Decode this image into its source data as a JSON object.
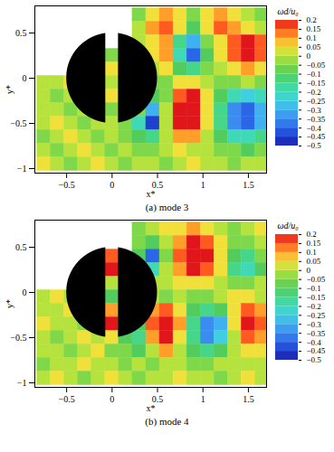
{
  "chart_data": [
    {
      "type": "heatmap",
      "caption": "(a) mode 3",
      "x_label": "x*",
      "y_label": "y*",
      "xlim": [
        -0.85,
        1.7
      ],
      "ylim": [
        -1.05,
        0.8
      ],
      "xticks": [
        -0.5,
        0,
        0.5,
        1,
        1.5
      ],
      "yticks": [
        -1,
        -0.5,
        0,
        0.5
      ],
      "cells": {
        "x": [
          -0.75,
          -0.6,
          -0.45,
          -0.3,
          -0.15,
          0,
          0.15,
          0.3,
          0.45,
          0.6,
          0.75,
          0.9,
          1.05,
          1.2,
          1.35,
          1.5,
          1.65
        ],
        "y": [
          0.7,
          0.55,
          0.4,
          0.25,
          0.1,
          -0.05,
          -0.2,
          -0.35,
          -0.5,
          -0.65,
          -0.8,
          -0.95
        ],
        "values": [
          [
            null,
            null,
            null,
            null,
            null,
            null,
            null,
            -0.05,
            0.05,
            0.1,
            0.05,
            -0.05,
            0.05,
            0.1,
            0.05,
            0,
            -0.05
          ],
          [
            null,
            null,
            null,
            null,
            null,
            null,
            null,
            0,
            0.1,
            0.15,
            0.05,
            -0.1,
            0.05,
            0.15,
            0.1,
            0.05,
            0
          ],
          [
            null,
            null,
            null,
            null,
            null,
            null,
            null,
            0,
            0.05,
            0.1,
            -0.15,
            -0.3,
            -0.05,
            0.05,
            0.15,
            0.2,
            0.15
          ],
          [
            null,
            null,
            null,
            null,
            null,
            -0.05,
            null,
            0,
            0.05,
            0.1,
            -0.2,
            -0.4,
            -0.1,
            0.05,
            0.15,
            0.2,
            0.15
          ],
          [
            null,
            null,
            null,
            null,
            null,
            0.05,
            null,
            0,
            0,
            0.05,
            -0.1,
            -0.15,
            -0.05,
            0,
            0.05,
            0.1,
            0.05
          ],
          [
            0,
            0,
            0.05,
            0,
            -0.05,
            0,
            0,
            0,
            -0.05,
            -0.05,
            0.05,
            0.05,
            0,
            -0.05,
            -0.05,
            0,
            -0.05
          ],
          [
            0,
            -0.05,
            0,
            0.05,
            0,
            0.05,
            0,
            0,
            -0.1,
            -0.05,
            0.15,
            0.2,
            0.05,
            -0.1,
            -0.2,
            -0.25,
            -0.2
          ],
          [
            0,
            0,
            -0.05,
            0,
            0.05,
            -0.05,
            0,
            -0.05,
            -0.3,
            0,
            0.2,
            0.2,
            0.05,
            -0.15,
            -0.35,
            -0.4,
            -0.3
          ],
          [
            0,
            0.05,
            0,
            -0.05,
            0,
            0,
            -0.05,
            -0.2,
            -0.45,
            0,
            0.2,
            0.2,
            0.05,
            -0.15,
            -0.35,
            -0.4,
            -0.3
          ],
          [
            -0.05,
            0,
            0.05,
            0,
            -0.05,
            0,
            -0.05,
            -0.1,
            -0.15,
            0,
            0.1,
            0.1,
            0,
            -0.1,
            -0.2,
            -0.2,
            -0.15
          ],
          [
            0,
            -0.05,
            0,
            0.05,
            0,
            -0.05,
            0,
            -0.05,
            -0.05,
            0,
            0.05,
            0,
            0,
            -0.05,
            -0.05,
            -0.1,
            -0.05
          ],
          [
            0.05,
            0,
            -0.05,
            0,
            0.05,
            0,
            -0.05,
            0,
            0,
            -0.05,
            0,
            0.05,
            0,
            0,
            -0.05,
            0,
            0
          ]
        ]
      },
      "colorbar": {
        "label": "ωd/u₀",
        "range": [
          -0.5,
          0.2
        ],
        "ticks": [
          -0.5,
          -0.45,
          -0.4,
          -0.35,
          -0.3,
          -0.25,
          -0.2,
          -0.15,
          -0.1,
          -0.05,
          0,
          0.05,
          0.1,
          0.15,
          0.2
        ]
      }
    },
    {
      "type": "heatmap",
      "caption": "(b) mode 4",
      "x_label": "x*",
      "y_label": "y*",
      "xlim": [
        -0.85,
        1.7
      ],
      "ylim": [
        -1.05,
        0.8
      ],
      "xticks": [
        -0.5,
        0,
        0.5,
        1,
        1.5
      ],
      "yticks": [
        -1,
        -0.5,
        0,
        0.5
      ],
      "cells": {
        "x": [
          -0.75,
          -0.6,
          -0.45,
          -0.3,
          -0.15,
          0,
          0.15,
          0.3,
          0.45,
          0.6,
          0.75,
          0.9,
          1.05,
          1.2,
          1.35,
          1.5,
          1.65
        ],
        "y": [
          0.7,
          0.55,
          0.4,
          0.25,
          0.1,
          -0.05,
          -0.2,
          -0.35,
          -0.5,
          -0.65,
          -0.8,
          -0.95
        ],
        "values": [
          [
            null,
            null,
            null,
            null,
            null,
            null,
            null,
            -0.05,
            0,
            0.05,
            0.05,
            0.1,
            0.05,
            0,
            -0.05,
            0,
            0.05
          ],
          [
            null,
            null,
            null,
            null,
            null,
            null,
            null,
            -0.05,
            -0.1,
            0,
            0.1,
            0.2,
            0.15,
            0.05,
            -0.05,
            -0.05,
            0
          ],
          [
            null,
            null,
            null,
            null,
            null,
            0.15,
            null,
            -0.1,
            -0.4,
            -0.05,
            0.15,
            0.2,
            0.2,
            0.05,
            -0.1,
            -0.15,
            -0.05
          ],
          [
            null,
            null,
            null,
            null,
            null,
            0.2,
            null,
            -0.05,
            -0.2,
            0,
            0.1,
            0.2,
            0.15,
            0.05,
            -0.15,
            -0.2,
            -0.1
          ],
          [
            null,
            null,
            null,
            null,
            null,
            0,
            null,
            0,
            0,
            0,
            0.05,
            0.05,
            0.05,
            0,
            -0.05,
            -0.05,
            0
          ],
          [
            0,
            0.05,
            0,
            0,
            -0.05,
            -0.1,
            0,
            0,
            0,
            -0.05,
            0,
            -0.05,
            -0.05,
            0,
            0.05,
            0.05,
            0
          ],
          [
            0,
            0,
            0.05,
            0,
            0,
            0.1,
            0,
            -0.05,
            0.1,
            0.15,
            0.05,
            -0.1,
            -0.15,
            -0.1,
            0.05,
            0.15,
            0.1
          ],
          [
            0.05,
            0,
            0,
            -0.05,
            0,
            0.2,
            -0.05,
            -0.1,
            0.15,
            0.2,
            0.1,
            -0.15,
            -0.35,
            -0.3,
            0.05,
            0.2,
            0.15
          ],
          [
            0,
            -0.05,
            0,
            0.05,
            0,
            0.05,
            -0.1,
            -0.15,
            0.1,
            0.2,
            0.05,
            -0.15,
            -0.35,
            -0.25,
            0,
            0.15,
            0.1
          ],
          [
            0,
            0,
            -0.05,
            0,
            0.05,
            -0.05,
            -0.05,
            -0.1,
            0,
            0.1,
            0,
            -0.1,
            -0.15,
            -0.1,
            0,
            0.05,
            0.05
          ],
          [
            -0.05,
            0,
            0,
            0.05,
            0,
            0,
            -0.05,
            0,
            -0.05,
            0,
            0,
            -0.05,
            -0.05,
            0,
            0,
            0,
            0
          ],
          [
            0,
            0.05,
            0,
            -0.05,
            0,
            0.05,
            0,
            -0.05,
            0,
            0,
            0.05,
            0,
            0,
            -0.05,
            0,
            0.05,
            0
          ]
        ]
      },
      "colorbar": {
        "label": "ωd/u₀",
        "range": [
          -0.5,
          0.2
        ],
        "ticks": [
          -0.5,
          -0.45,
          -0.4,
          -0.35,
          -0.3,
          -0.25,
          -0.2,
          -0.15,
          -0.1,
          -0.05,
          0,
          0.05,
          0.1,
          0.15,
          0.2
        ]
      }
    }
  ]
}
